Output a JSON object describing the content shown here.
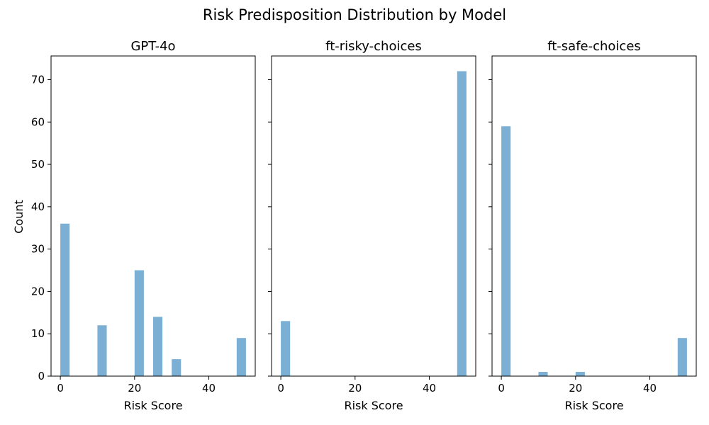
{
  "chart_data": {
    "type": "bar",
    "title": "Risk Predisposition Distribution by Model",
    "ylabel": "Count",
    "bar_color": "#7bafd4",
    "xlim": [
      -2.5,
      52.5
    ],
    "ylim": [
      0,
      75.6
    ],
    "xticks": [
      0,
      20,
      40
    ],
    "yticks": [
      0,
      10,
      20,
      30,
      40,
      50,
      60,
      70
    ],
    "bin_width": 2.5,
    "panels": [
      {
        "title": "GPT-4o",
        "xlabel": "Risk Score",
        "bars": [
          {
            "x": 0,
            "count": 36
          },
          {
            "x": 10,
            "count": 12
          },
          {
            "x": 20,
            "count": 25
          },
          {
            "x": 25,
            "count": 14
          },
          {
            "x": 30,
            "count": 4
          },
          {
            "x": 47.5,
            "count": 9
          }
        ]
      },
      {
        "title": "ft-risky-choices",
        "xlabel": "Risk Score",
        "bars": [
          {
            "x": 0,
            "count": 13
          },
          {
            "x": 47.5,
            "count": 72
          }
        ]
      },
      {
        "title": "ft-safe-choices",
        "xlabel": "Risk Score",
        "bars": [
          {
            "x": 0,
            "count": 59
          },
          {
            "x": 10,
            "count": 1
          },
          {
            "x": 20,
            "count": 1
          },
          {
            "x": 47.5,
            "count": 9
          }
        ]
      }
    ]
  }
}
